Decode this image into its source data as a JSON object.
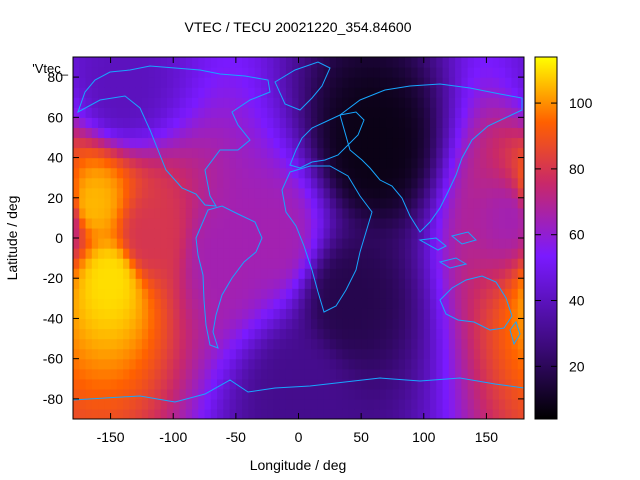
{
  "chart_data": {
    "type": "heatmap",
    "title": "VTEC / TECU 20021220_354.84600",
    "xlabel": "Longitude / deg",
    "ylabel": "Latitude / deg",
    "series_label": "'Vtec_",
    "xlim": [
      -180,
      180
    ],
    "ylim": [
      -90,
      90
    ],
    "x_ticks": [
      -150,
      -100,
      -50,
      0,
      50,
      100,
      150
    ],
    "y_ticks": [
      -80,
      -60,
      -40,
      -20,
      0,
      20,
      40,
      60,
      80
    ],
    "colorbar": {
      "range": [
        4,
        114
      ],
      "ticks": [
        20,
        40,
        60,
        80,
        100
      ],
      "colors": [
        "#000000",
        "#3c0a7a",
        "#7a1aff",
        "#c8286a",
        "#ff6000",
        "#ffff00"
      ]
    },
    "grid": false,
    "value_samples": [
      {
        "lon": -165,
        "lat": 17,
        "vtec": 105
      },
      {
        "lon": -150,
        "lat": -20,
        "vtec": 110
      },
      {
        "lon": -120,
        "lat": 0,
        "vtec": 80
      },
      {
        "lon": -60,
        "lat": -10,
        "vtec": 65
      },
      {
        "lon": -20,
        "lat": 0,
        "vtec": 65
      },
      {
        "lon": 60,
        "lat": 45,
        "vtec": 8
      },
      {
        "lon": 40,
        "lat": -30,
        "vtec": 18
      },
      {
        "lon": 170,
        "lat": 10,
        "vtec": 65
      },
      {
        "lon": -140,
        "lat": 75,
        "vtec": 40
      },
      {
        "lon": 0,
        "lat": -75,
        "vtec": 30
      }
    ]
  }
}
